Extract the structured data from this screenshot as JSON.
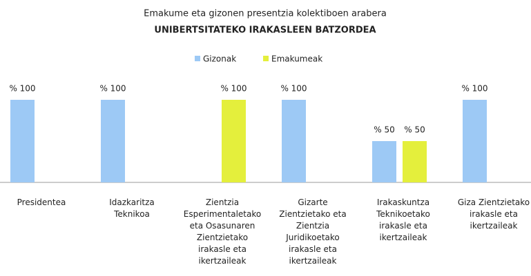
{
  "chart_data": {
    "type": "bar",
    "title": "Emakume eta gizonen presentzia kolektiboen arabera",
    "subtitle": "UNIBERTSITATEKO IRAKASLEEN BATZORDEA",
    "categories": [
      "Presidentea",
      "Idazkaritza Teknikoa",
      "Zientzia Esperimentaletako eta Osasunaren Zientzietako irakasle eta ikertzaileak",
      "Gizarte Zientzietako eta Zientzia Juridikoetako irakasle eta ikertzaileak",
      "Irakaskuntza Teknikoetako irakasle eta ikertzaileak",
      "Giza Zientzietako irakasle eta ikertzaileak"
    ],
    "series": [
      {
        "name": "Gizonak",
        "color": "#9dc9f5",
        "values": [
          100,
          100,
          0,
          100,
          50,
          100
        ],
        "value_labels": [
          "% 100",
          "% 100",
          null,
          "% 100",
          "% 50",
          "% 100"
        ]
      },
      {
        "name": "Emakumeak",
        "color": "#e4ef3c",
        "values": [
          0,
          0,
          100,
          0,
          50,
          0
        ],
        "value_labels": [
          null,
          null,
          "% 100",
          null,
          "% 50",
          null
        ]
      }
    ],
    "ylim": [
      0,
      100
    ],
    "legend": "top"
  }
}
